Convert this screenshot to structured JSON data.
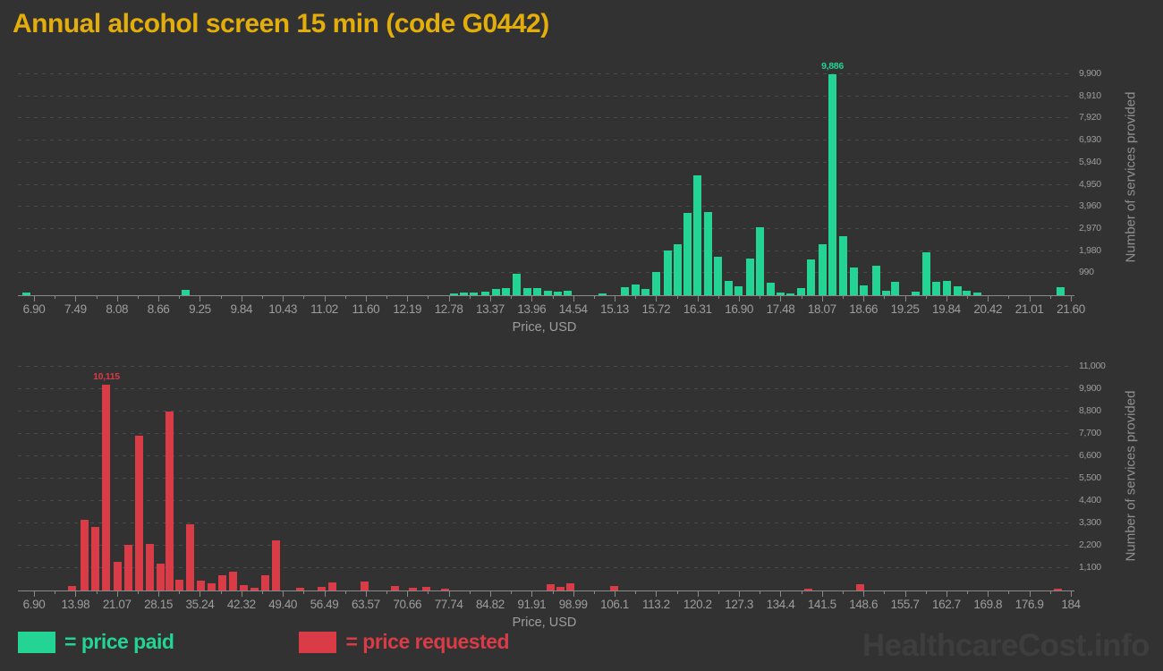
{
  "page": {
    "title": "Annual alcohol screen 15 min (code G0442)",
    "watermark": "HealthcareCost.info",
    "background_color": "#323232",
    "title_color": "#e3ae0c"
  },
  "legend": {
    "paid_label": "= price paid",
    "requested_label": "= price requested",
    "paid_color": "#24d495",
    "requested_color": "#d93b47"
  },
  "chart_data": [
    {
      "type": "bar",
      "name": "price paid",
      "color": "#24d495",
      "xlabel": "Price, USD",
      "ylabel": "Number of services provided",
      "xlim": [
        6.9,
        21.6
      ],
      "ylim": [
        0,
        9900
      ],
      "grid": true,
      "legend_position": "bottom-left",
      "x_ticks": [
        "6.90",
        "7.49",
        "8.08",
        "8.66",
        "9.25",
        "9.84",
        "10.43",
        "11.02",
        "11.60",
        "12.19",
        "12.78",
        "13.37",
        "13.96",
        "14.54",
        "15.13",
        "15.72",
        "16.31",
        "16.90",
        "17.48",
        "18.07",
        "18.66",
        "19.25",
        "19.84",
        "20.42",
        "21.01",
        "21.60"
      ],
      "y_ticks": [
        "990",
        "1,980",
        "2,970",
        "3,960",
        "4,950",
        "5,940",
        "6,930",
        "7,920",
        "8,910",
        "9,900"
      ],
      "y_tick_values": [
        990,
        1980,
        2970,
        3960,
        4950,
        5940,
        6930,
        7920,
        8910,
        9900
      ],
      "annotations": [
        {
          "text": "9,886",
          "x": 18.22
        }
      ],
      "bars": [
        [
          6.79,
          130
        ],
        [
          9.05,
          240
        ],
        [
          12.85,
          60
        ],
        [
          13.0,
          130
        ],
        [
          13.14,
          130
        ],
        [
          13.3,
          170
        ],
        [
          13.45,
          280
        ],
        [
          13.59,
          330
        ],
        [
          13.74,
          960
        ],
        [
          13.89,
          330
        ],
        [
          14.03,
          330
        ],
        [
          14.19,
          200
        ],
        [
          14.33,
          150
        ],
        [
          14.47,
          200
        ],
        [
          14.96,
          100
        ],
        [
          15.28,
          360
        ],
        [
          15.43,
          480
        ],
        [
          15.57,
          300
        ],
        [
          15.72,
          1040
        ],
        [
          15.88,
          2000
        ],
        [
          16.02,
          2280
        ],
        [
          16.17,
          3690
        ],
        [
          16.31,
          5370
        ],
        [
          16.46,
          3730
        ],
        [
          16.6,
          1730
        ],
        [
          16.75,
          640
        ],
        [
          16.89,
          400
        ],
        [
          17.05,
          1640
        ],
        [
          17.19,
          3050
        ],
        [
          17.34,
          560
        ],
        [
          17.48,
          140
        ],
        [
          17.63,
          90
        ],
        [
          17.77,
          320
        ],
        [
          17.92,
          1600
        ],
        [
          18.08,
          2280
        ],
        [
          18.22,
          9886
        ],
        [
          18.37,
          2640
        ],
        [
          18.52,
          1250
        ],
        [
          18.66,
          460
        ],
        [
          18.84,
          1330
        ],
        [
          18.98,
          200
        ],
        [
          19.11,
          600
        ],
        [
          19.4,
          170
        ],
        [
          19.55,
          1930
        ],
        [
          19.69,
          590
        ],
        [
          19.84,
          660
        ],
        [
          20.0,
          390
        ],
        [
          20.12,
          190
        ],
        [
          20.28,
          130
        ],
        [
          21.46,
          350
        ]
      ]
    },
    {
      "type": "bar",
      "name": "price requested",
      "color": "#d93b47",
      "xlabel": "Price, USD",
      "ylabel": "Number of services provided",
      "xlim": [
        6.9,
        184
      ],
      "ylim": [
        0,
        11000
      ],
      "grid": true,
      "legend_position": "bottom-left",
      "x_ticks": [
        "6.90",
        "13.98",
        "21.07",
        "28.15",
        "35.24",
        "42.32",
        "49.40",
        "56.49",
        "63.57",
        "70.66",
        "77.74",
        "84.82",
        "91.91",
        "98.99",
        "106.1",
        "113.2",
        "120.2",
        "127.3",
        "134.4",
        "141.5",
        "148.6",
        "155.7",
        "162.7",
        "169.8",
        "176.9",
        "184"
      ],
      "y_ticks": [
        "1,100",
        "2,200",
        "3,300",
        "4,400",
        "5,500",
        "6,600",
        "7,700",
        "8,800",
        "9,900",
        "11,000"
      ],
      "y_tick_values": [
        1100,
        2200,
        3300,
        4400,
        5500,
        6600,
        7700,
        8800,
        9900,
        11000
      ],
      "annotations": [
        {
          "text": "10,115",
          "x": 19.27
        }
      ],
      "bars": [
        [
          13.47,
          230
        ],
        [
          15.6,
          3480
        ],
        [
          17.44,
          3130
        ],
        [
          19.27,
          10115
        ],
        [
          21.25,
          1420
        ],
        [
          23.08,
          2240
        ],
        [
          24.92,
          7600
        ],
        [
          26.75,
          2300
        ],
        [
          28.58,
          1330
        ],
        [
          30.04,
          8800
        ],
        [
          31.79,
          530
        ],
        [
          33.62,
          3240
        ],
        [
          35.45,
          480
        ],
        [
          37.28,
          370
        ],
        [
          39.12,
          740
        ],
        [
          40.95,
          920
        ],
        [
          42.78,
          260
        ],
        [
          44.62,
          150
        ],
        [
          46.45,
          740
        ],
        [
          48.28,
          2480
        ],
        [
          52.4,
          130
        ],
        [
          56.07,
          170
        ],
        [
          57.9,
          390
        ],
        [
          63.4,
          430
        ],
        [
          68.59,
          220
        ],
        [
          71.64,
          130
        ],
        [
          73.93,
          170
        ],
        [
          77.14,
          110
        ],
        [
          95.16,
          300
        ],
        [
          96.84,
          170
        ],
        [
          98.52,
          370
        ],
        [
          106.0,
          220
        ],
        [
          139.13,
          90
        ],
        [
          148.06,
          330
        ],
        [
          181.76,
          90
        ]
      ]
    }
  ]
}
